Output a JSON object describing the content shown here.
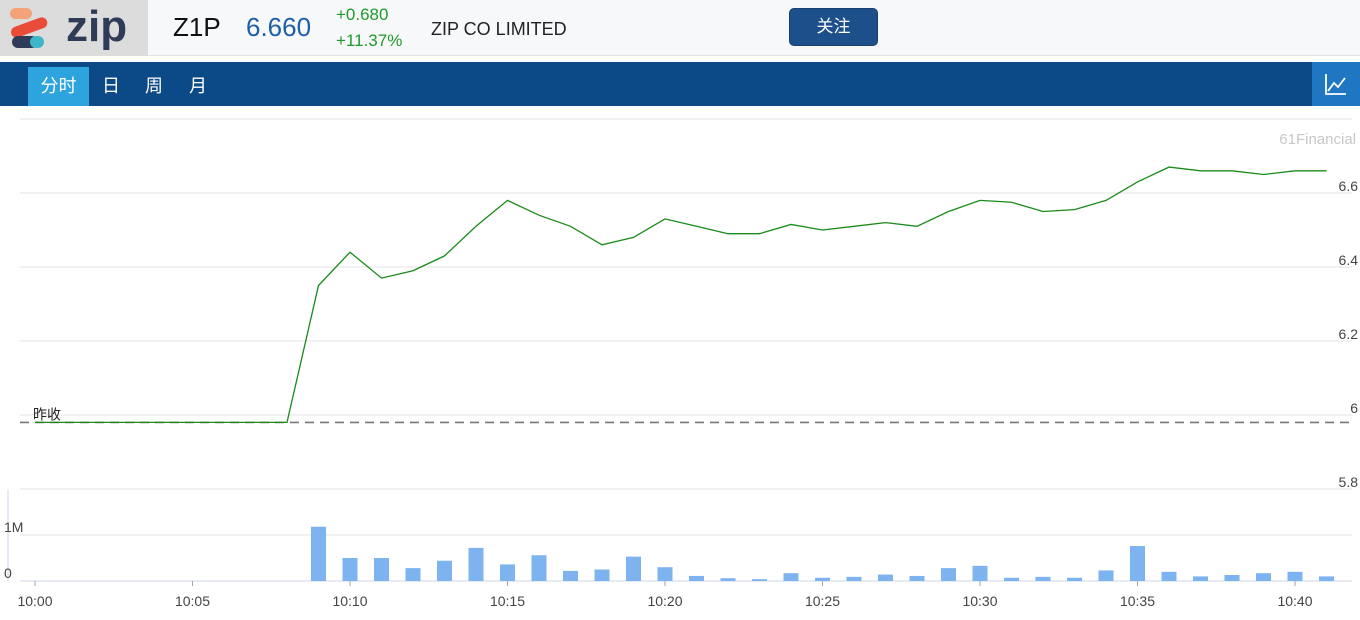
{
  "header": {
    "logo_text": "zip",
    "ticker": "Z1P",
    "price": "6.660",
    "change_abs": "+0.680",
    "change_pct": "+11.37%",
    "company": "ZIP CO LIMITED",
    "follow_label": "关注"
  },
  "tabs": [
    {
      "label": "分时",
      "active": true
    },
    {
      "label": "日",
      "active": false
    },
    {
      "label": "周",
      "active": false
    },
    {
      "label": "月",
      "active": false
    }
  ],
  "colors": {
    "brand": "#0c4a87",
    "active_tab": "#2ea4df",
    "price_line": "#1a8a1a",
    "volume_bar": "#7db3ee",
    "price_blue": "#1f5fa8",
    "up_green": "#1e9a2a"
  },
  "chart_data": [
    {
      "type": "line",
      "watermark": "61Financial",
      "prev_close_label": "昨收",
      "prev_close": 5.98,
      "y_ticks": [
        "6.6",
        "6.4",
        "6.2",
        "6",
        "5.8"
      ],
      "ylim": [
        5.8,
        6.8
      ],
      "x_ticks": [
        "10:00",
        "10:05",
        "10:10",
        "10:15",
        "10:20",
        "10:25",
        "10:30",
        "10:35",
        "10:40"
      ],
      "x": [
        0,
        1,
        2,
        3,
        4,
        5,
        6,
        7,
        8,
        9,
        10,
        11,
        12,
        13,
        14,
        15,
        16,
        17,
        18,
        19,
        20,
        21,
        22,
        23,
        24,
        25,
        26,
        27,
        28,
        29,
        30,
        31,
        32,
        33,
        34,
        35,
        36,
        37,
        38,
        39,
        40,
        41
      ],
      "values": [
        5.98,
        5.98,
        5.98,
        5.98,
        5.98,
        5.98,
        5.98,
        5.98,
        5.98,
        6.35,
        6.44,
        6.37,
        6.39,
        6.43,
        6.51,
        6.58,
        6.54,
        6.51,
        6.46,
        6.48,
        6.53,
        6.51,
        6.49,
        6.49,
        6.515,
        6.5,
        6.51,
        6.52,
        6.51,
        6.55,
        6.58,
        6.575,
        6.55,
        6.555,
        6.58,
        6.63,
        6.67,
        6.66,
        6.66,
        6.65,
        6.66,
        6.66
      ],
      "grid": true
    },
    {
      "type": "bar",
      "y_ticks": [
        "1M",
        "0"
      ],
      "ylim": [
        0,
        2000000
      ],
      "x": [
        9,
        10,
        11,
        12,
        13,
        14,
        15,
        16,
        17,
        18,
        19,
        20,
        21,
        22,
        23,
        24,
        25,
        26,
        27,
        28,
        29,
        30,
        31,
        32,
        33,
        34,
        35,
        36,
        37,
        38,
        39,
        40,
        41
      ],
      "values": [
        1180000,
        500000,
        500000,
        280000,
        440000,
        720000,
        360000,
        560000,
        220000,
        250000,
        530000,
        300000,
        110000,
        60000,
        40000,
        170000,
        70000,
        90000,
        140000,
        110000,
        280000,
        330000,
        70000,
        90000,
        70000,
        230000,
        760000,
        200000,
        100000,
        130000,
        170000,
        200000,
        100000
      ]
    }
  ]
}
